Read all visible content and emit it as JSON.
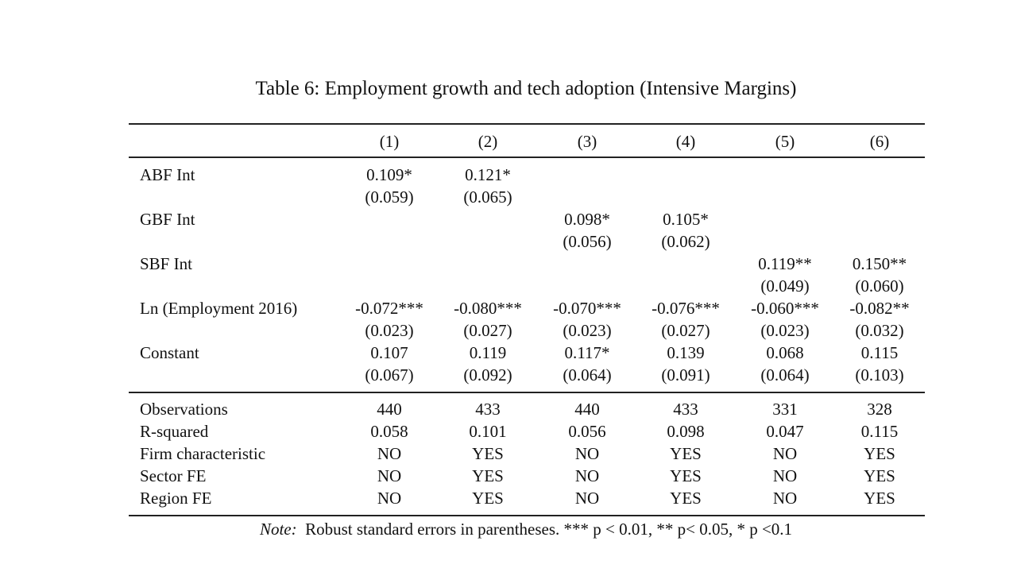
{
  "table": {
    "title": "Table 6: Employment growth and tech adoption (Intensive Margins)",
    "columns": [
      "(1)",
      "(2)",
      "(3)",
      "(4)",
      "(5)",
      "(6)"
    ],
    "coefficients": [
      {
        "label": "ABF Int",
        "estimates": [
          "0.109*",
          "0.121*",
          null,
          null,
          null,
          null
        ],
        "std_errors": [
          "(0.059)",
          "(0.065)",
          null,
          null,
          null,
          null
        ]
      },
      {
        "label": "GBF Int",
        "estimates": [
          null,
          null,
          "0.098*",
          "0.105*",
          null,
          null
        ],
        "std_errors": [
          null,
          null,
          "(0.056)",
          "(0.062)",
          null,
          null
        ]
      },
      {
        "label": "SBF Int",
        "estimates": [
          null,
          null,
          null,
          null,
          "0.119**",
          "0.150**"
        ],
        "std_errors": [
          null,
          null,
          null,
          null,
          "(0.049)",
          "(0.060)"
        ]
      },
      {
        "label": "Ln (Employment 2016)",
        "estimates": [
          "-0.072***",
          "-0.080***",
          "-0.070***",
          "-0.076***",
          "-0.060***",
          "-0.082**"
        ],
        "std_errors": [
          "(0.023)",
          "(0.027)",
          "(0.023)",
          "(0.027)",
          "(0.023)",
          "(0.032)"
        ]
      },
      {
        "label": "Constant",
        "estimates": [
          "0.107",
          "0.119",
          "0.117*",
          "0.139",
          "0.068",
          "0.115"
        ],
        "std_errors": [
          "(0.067)",
          "(0.092)",
          "(0.064)",
          "(0.091)",
          "(0.064)",
          "(0.103)"
        ]
      }
    ],
    "statistics": [
      {
        "label": "Observations",
        "values": [
          440,
          433,
          440,
          433,
          331,
          328
        ]
      },
      {
        "label": "R-squared",
        "values": [
          0.058,
          0.101,
          0.056,
          0.098,
          0.047,
          0.115
        ]
      },
      {
        "label": "Firm characteristic",
        "values": [
          "NO",
          "YES",
          "NO",
          "YES",
          "NO",
          "YES"
        ]
      },
      {
        "label": "Sector FE",
        "values": [
          "NO",
          "YES",
          "NO",
          "YES",
          "NO",
          "YES"
        ]
      },
      {
        "label": "Region FE",
        "values": [
          "NO",
          "YES",
          "NO",
          "YES",
          "NO",
          "YES"
        ]
      }
    ],
    "note": {
      "label": "Note:",
      "text": "Robust standard errors in parentheses. *** p < 0.01, ** p< 0.05, * p <0.1"
    }
  }
}
